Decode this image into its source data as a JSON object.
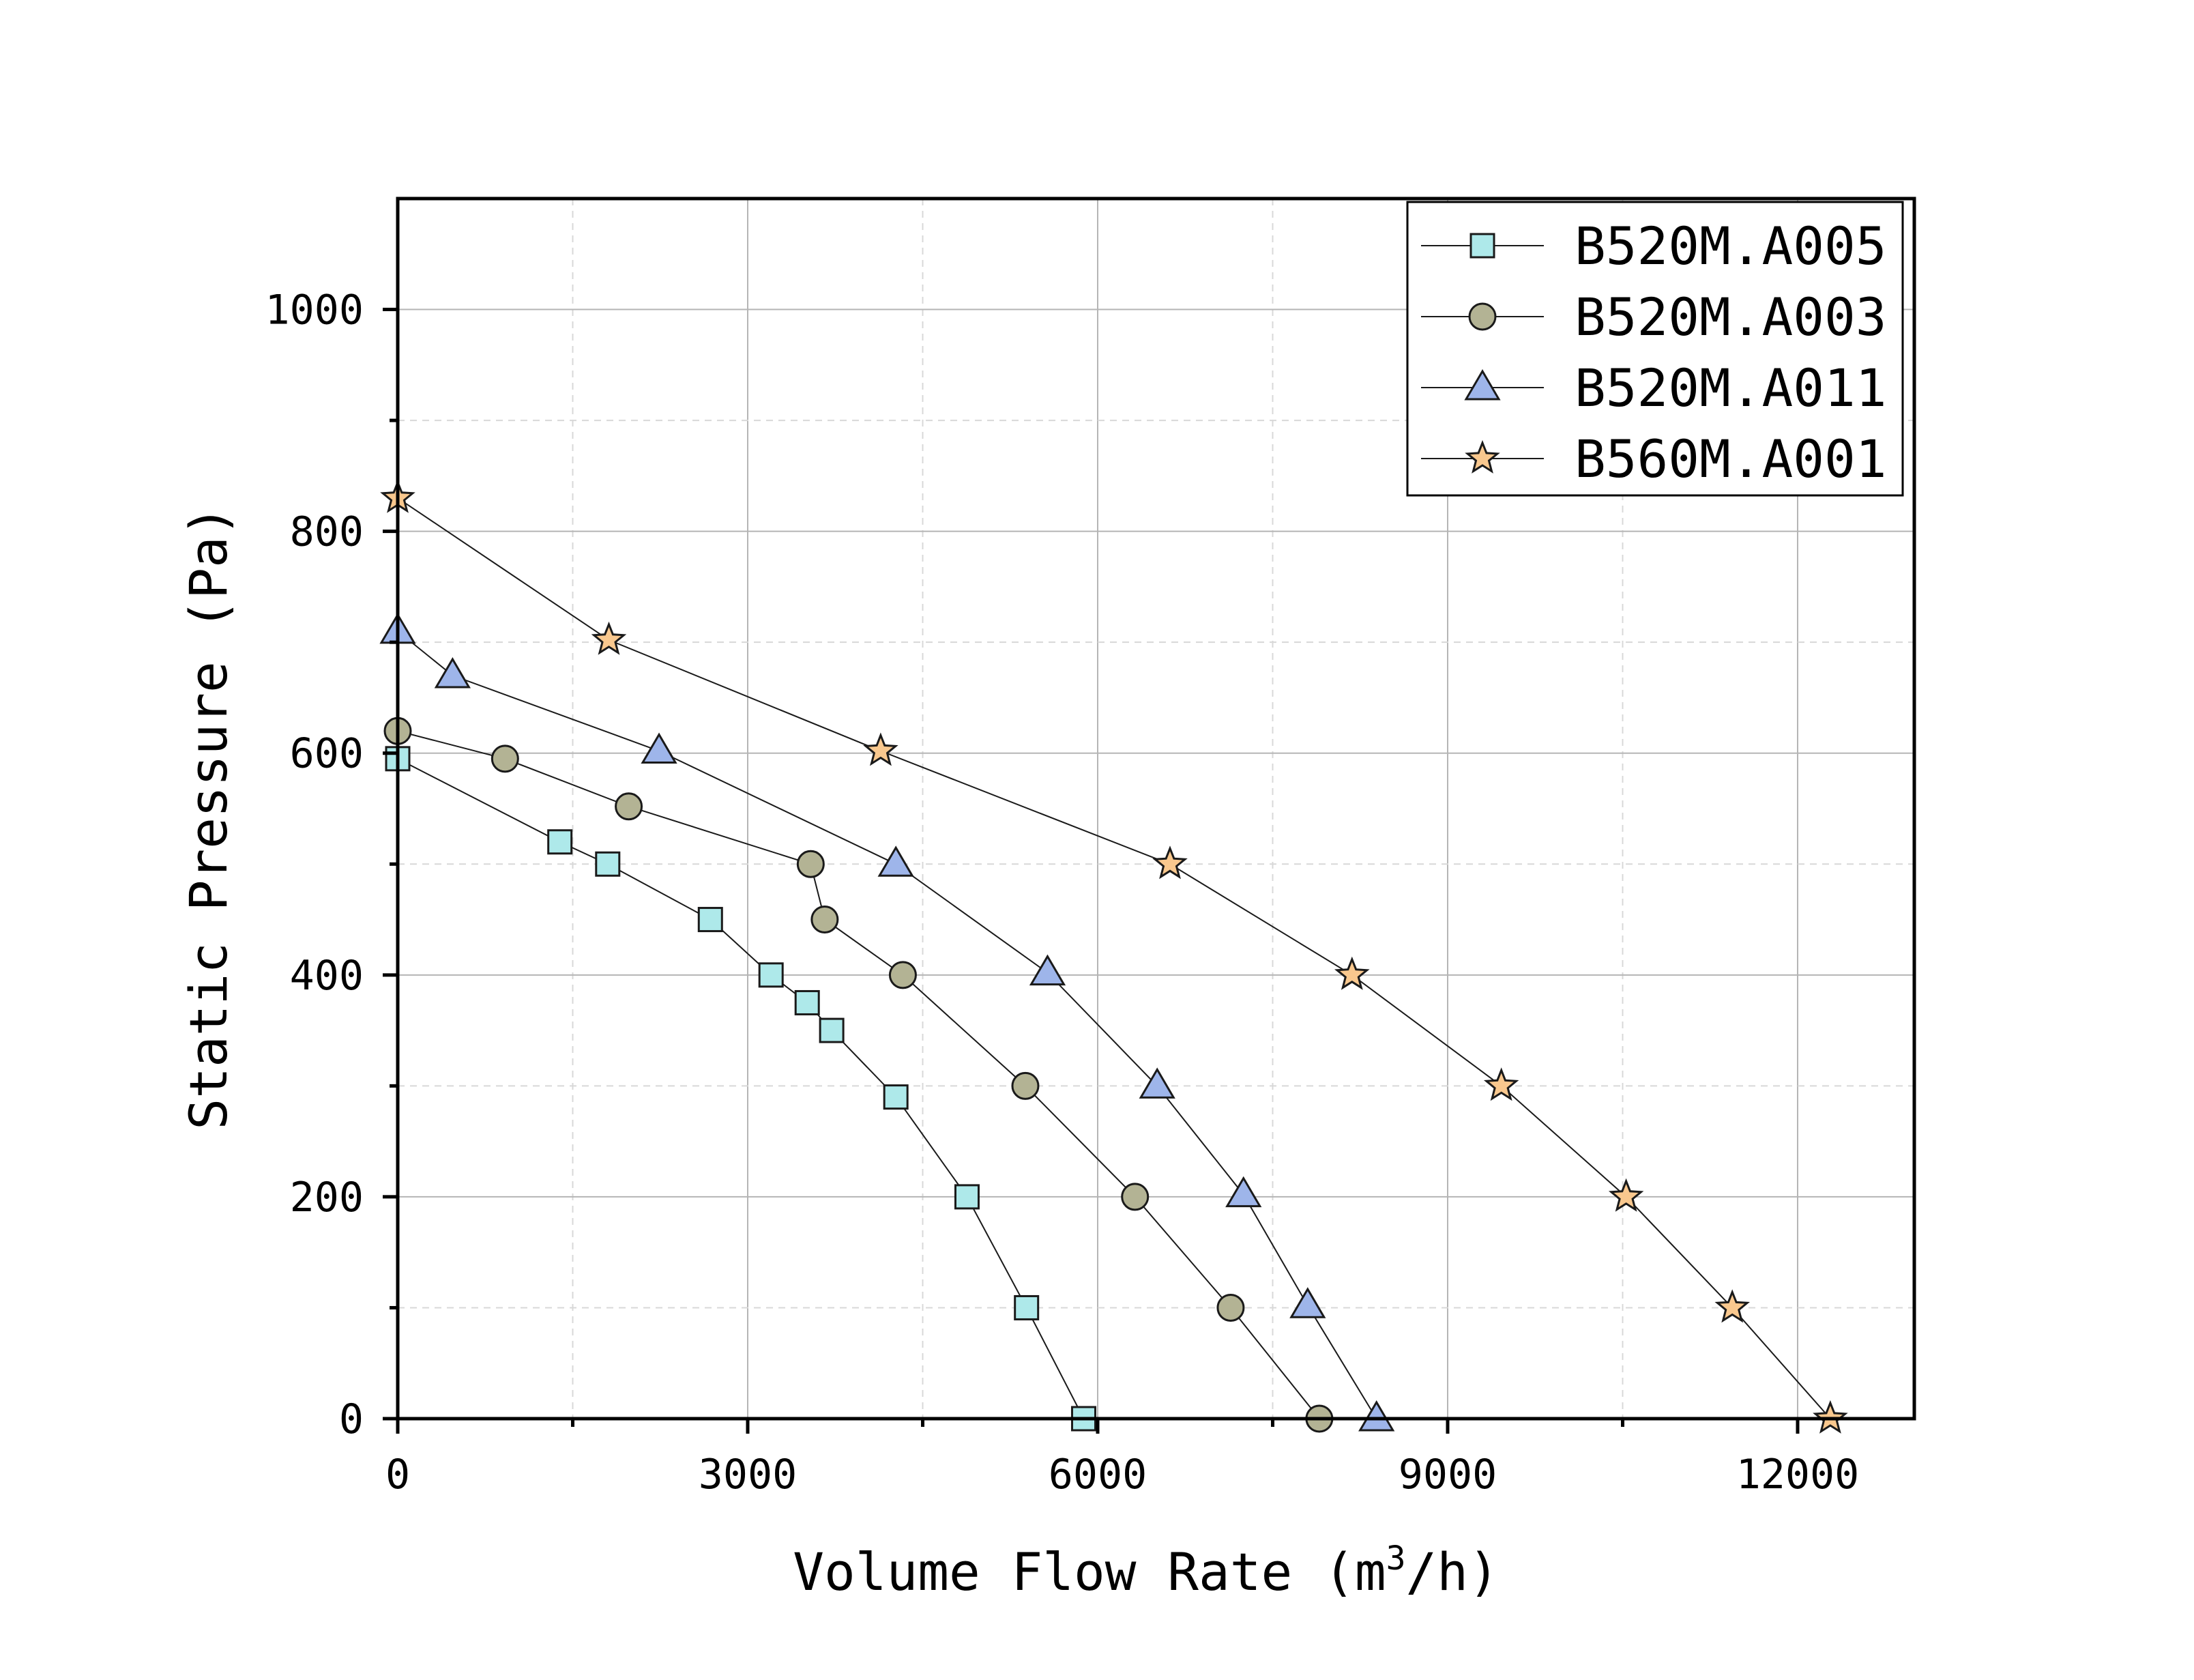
{
  "chart_data": {
    "type": "line",
    "xlabel": "Volume Flow Rate (m",
    "xlabel_sup": "3",
    "xlabel_end": "/h)",
    "ylabel": "Static Pressure (Pa)",
    "xlim": [
      0,
      13000
    ],
    "ylim": [
      0,
      1100
    ],
    "x_ticks": [
      0,
      3000,
      6000,
      9000,
      12000
    ],
    "x_tick_labels": [
      "0",
      "3000",
      "6000",
      "9000",
      "12000"
    ],
    "x_minor_ticks": [
      1500,
      4500,
      7500,
      10500
    ],
    "y_ticks": [
      0,
      200,
      400,
      600,
      800,
      1000
    ],
    "y_tick_labels": [
      "0",
      "200",
      "400",
      "600",
      "800",
      "1000"
    ],
    "y_minor_ticks": [
      100,
      300,
      500,
      700,
      900
    ],
    "grid": true,
    "legend_position": "top-right",
    "series": [
      {
        "name": "B520M.A005",
        "marker": "square",
        "color": "#aee9ea",
        "points": [
          [
            0,
            595
          ],
          [
            1390,
            520
          ],
          [
            1800,
            500
          ],
          [
            2680,
            450
          ],
          [
            3200,
            400
          ],
          [
            3510,
            375
          ],
          [
            3720,
            350
          ],
          [
            4270,
            290
          ],
          [
            4880,
            200
          ],
          [
            5390,
            100
          ],
          [
            5880,
            0
          ]
        ]
      },
      {
        "name": "B520M.A003",
        "marker": "circle",
        "color": "#b3b394",
        "points": [
          [
            0,
            620
          ],
          [
            920,
            595
          ],
          [
            1980,
            552
          ],
          [
            3540,
            500
          ],
          [
            3660,
            450
          ],
          [
            4330,
            400
          ],
          [
            5380,
            300
          ],
          [
            6320,
            200
          ],
          [
            7140,
            100
          ],
          [
            7900,
            0
          ]
        ]
      },
      {
        "name": "B520M.A011",
        "marker": "triangle",
        "color": "#9eb5ea",
        "points": [
          [
            0,
            710
          ],
          [
            470,
            670
          ],
          [
            2240,
            602
          ],
          [
            4270,
            500
          ],
          [
            5570,
            402
          ],
          [
            6510,
            300
          ],
          [
            7250,
            202
          ],
          [
            7800,
            102
          ],
          [
            8390,
            0
          ]
        ]
      },
      {
        "name": "B560M.A001",
        "marker": "star",
        "color": "#f9c88e",
        "points": [
          [
            0,
            830
          ],
          [
            1810,
            702
          ],
          [
            4140,
            602
          ],
          [
            6620,
            500
          ],
          [
            8180,
            400
          ],
          [
            9460,
            300
          ],
          [
            10530,
            200
          ],
          [
            11440,
            100
          ],
          [
            12280,
            0
          ]
        ]
      }
    ]
  }
}
